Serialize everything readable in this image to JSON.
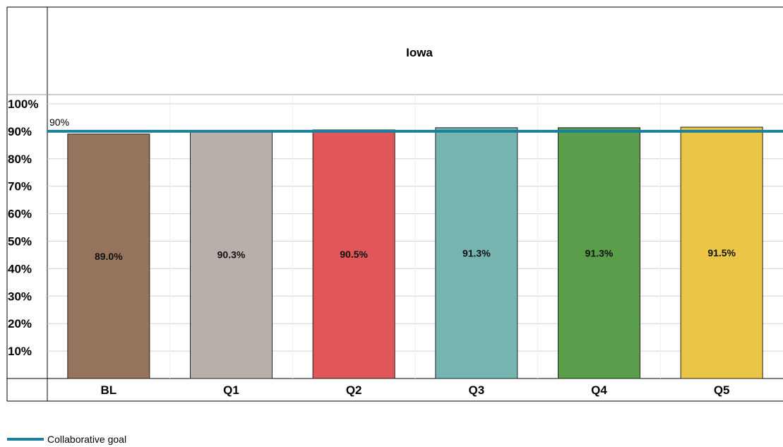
{
  "chart_data": {
    "type": "bar",
    "title": "Iowa",
    "categories": [
      "BL",
      "Q1",
      "Q2",
      "Q3",
      "Q4",
      "Q5"
    ],
    "values": [
      89.0,
      90.3,
      90.5,
      91.3,
      91.3,
      91.5
    ],
    "data_labels": [
      "89.0%",
      "90.3%",
      "90.5%",
      "91.3%",
      "91.3%",
      "91.5%"
    ],
    "bar_colors": [
      "#96735c",
      "#b8afaa",
      "#e05659",
      "#76b4af",
      "#5a9e4b",
      "#ebc546"
    ],
    "ylim": [
      0,
      100
    ],
    "yticks": [
      "100%",
      "90%",
      "80%",
      "70%",
      "60%",
      "50%",
      "40%",
      "30%",
      "20%",
      "10%"
    ],
    "ytick_values": [
      100,
      90,
      80,
      70,
      60,
      50,
      40,
      30,
      20,
      10
    ],
    "goal": {
      "value": 90,
      "label": "90%",
      "color": "#1a7f9a"
    },
    "legend": {
      "position": "bottom-left",
      "entries": [
        "Collaborative goal"
      ]
    },
    "grid": true
  }
}
